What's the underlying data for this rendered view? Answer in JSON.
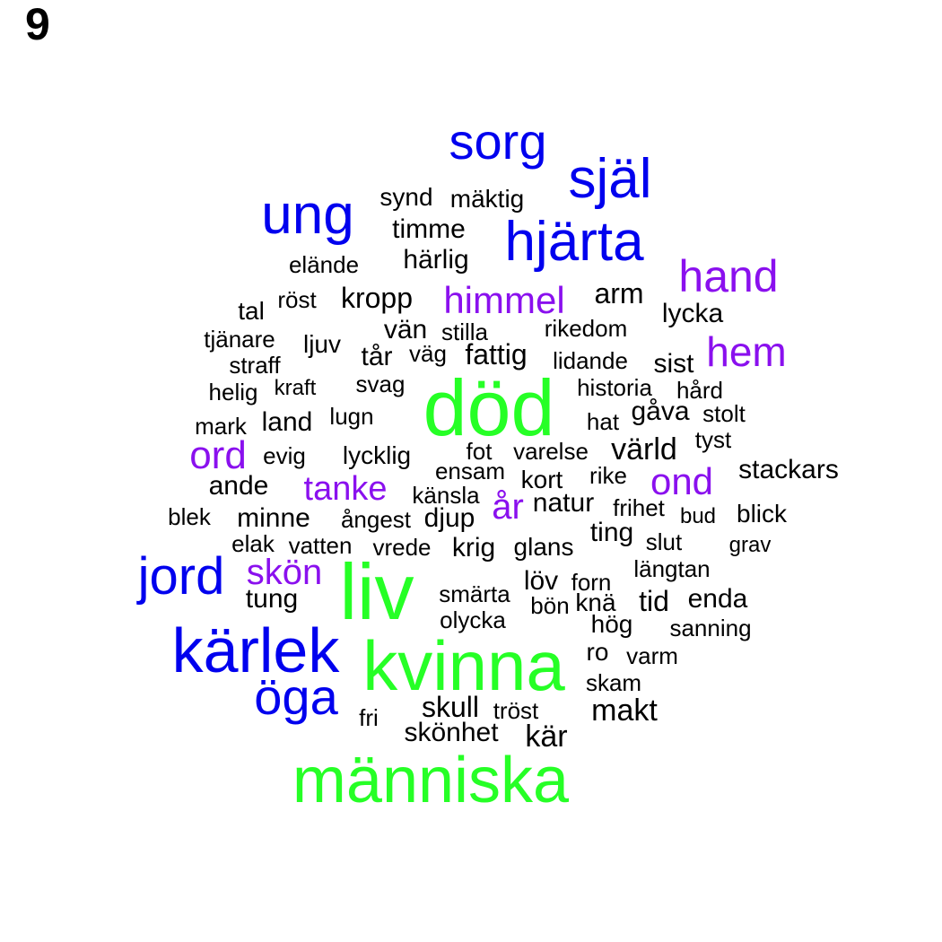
{
  "panel_label": "9",
  "colors": {
    "tier1": "#26ff26",
    "tier2": "#0000ee",
    "tier3": "#8a10ee",
    "tier4": "#000000"
  },
  "words": [
    {
      "text": "död",
      "tier": 1
    },
    {
      "text": "liv",
      "tier": 1
    },
    {
      "text": "kvinna",
      "tier": 1
    },
    {
      "text": "människa",
      "tier": 1
    },
    {
      "text": "sorg",
      "tier": 2
    },
    {
      "text": "själ",
      "tier": 2
    },
    {
      "text": "ung",
      "tier": 2
    },
    {
      "text": "hjärta",
      "tier": 2
    },
    {
      "text": "jord",
      "tier": 2
    },
    {
      "text": "kärlek",
      "tier": 2
    },
    {
      "text": "öga",
      "tier": 2
    },
    {
      "text": "hand",
      "tier": 3
    },
    {
      "text": "himmel",
      "tier": 3
    },
    {
      "text": "hem",
      "tier": 3
    },
    {
      "text": "ord",
      "tier": 3
    },
    {
      "text": "ond",
      "tier": 3
    },
    {
      "text": "tanke",
      "tier": 3
    },
    {
      "text": "år",
      "tier": 3
    },
    {
      "text": "skön",
      "tier": 3
    },
    {
      "text": "synd",
      "tier": 4
    },
    {
      "text": "mäktig",
      "tier": 4
    },
    {
      "text": "timme",
      "tier": 4
    },
    {
      "text": "härlig",
      "tier": 4
    },
    {
      "text": "elände",
      "tier": 4
    },
    {
      "text": "tal",
      "tier": 4
    },
    {
      "text": "röst",
      "tier": 4
    },
    {
      "text": "kropp",
      "tier": 4
    },
    {
      "text": "arm",
      "tier": 4
    },
    {
      "text": "lycka",
      "tier": 4
    },
    {
      "text": "tjänare",
      "tier": 4
    },
    {
      "text": "vän",
      "tier": 4
    },
    {
      "text": "stilla",
      "tier": 4
    },
    {
      "text": "rikedom",
      "tier": 4
    },
    {
      "text": "ljuv",
      "tier": 4
    },
    {
      "text": "straff",
      "tier": 4
    },
    {
      "text": "tår",
      "tier": 4
    },
    {
      "text": "väg",
      "tier": 4
    },
    {
      "text": "fattig",
      "tier": 4
    },
    {
      "text": "lidande",
      "tier": 4
    },
    {
      "text": "sist",
      "tier": 4
    },
    {
      "text": "helig",
      "tier": 4
    },
    {
      "text": "kraft",
      "tier": 4
    },
    {
      "text": "svag",
      "tier": 4
    },
    {
      "text": "historia",
      "tier": 4
    },
    {
      "text": "hård",
      "tier": 4
    },
    {
      "text": "mark",
      "tier": 4
    },
    {
      "text": "land",
      "tier": 4
    },
    {
      "text": "lugn",
      "tier": 4
    },
    {
      "text": "hat",
      "tier": 4
    },
    {
      "text": "gåva",
      "tier": 4
    },
    {
      "text": "stolt",
      "tier": 4
    },
    {
      "text": "tyst",
      "tier": 4
    },
    {
      "text": "evig",
      "tier": 4
    },
    {
      "text": "lycklig",
      "tier": 4
    },
    {
      "text": "fot",
      "tier": 4
    },
    {
      "text": "varelse",
      "tier": 4
    },
    {
      "text": "värld",
      "tier": 4
    },
    {
      "text": "ensam",
      "tier": 4
    },
    {
      "text": "kort",
      "tier": 4
    },
    {
      "text": "rike",
      "tier": 4
    },
    {
      "text": "stackars",
      "tier": 4
    },
    {
      "text": "ande",
      "tier": 4
    },
    {
      "text": "känsla",
      "tier": 4
    },
    {
      "text": "natur",
      "tier": 4
    },
    {
      "text": "frihet",
      "tier": 4
    },
    {
      "text": "blek",
      "tier": 4
    },
    {
      "text": "minne",
      "tier": 4
    },
    {
      "text": "ångest",
      "tier": 4
    },
    {
      "text": "djup",
      "tier": 4
    },
    {
      "text": "bud",
      "tier": 4
    },
    {
      "text": "blick",
      "tier": 4
    },
    {
      "text": "ting",
      "tier": 4
    },
    {
      "text": "elak",
      "tier": 4
    },
    {
      "text": "vatten",
      "tier": 4
    },
    {
      "text": "vrede",
      "tier": 4
    },
    {
      "text": "krig",
      "tier": 4
    },
    {
      "text": "glans",
      "tier": 4
    },
    {
      "text": "slut",
      "tier": 4
    },
    {
      "text": "grav",
      "tier": 4
    },
    {
      "text": "längtan",
      "tier": 4
    },
    {
      "text": "löv",
      "tier": 4
    },
    {
      "text": "forn",
      "tier": 4
    },
    {
      "text": "tung",
      "tier": 4
    },
    {
      "text": "smärta",
      "tier": 4
    },
    {
      "text": "bön",
      "tier": 4
    },
    {
      "text": "knä",
      "tier": 4
    },
    {
      "text": "tid",
      "tier": 4
    },
    {
      "text": "enda",
      "tier": 4
    },
    {
      "text": "olycka",
      "tier": 4
    },
    {
      "text": "hög",
      "tier": 4
    },
    {
      "text": "sanning",
      "tier": 4
    },
    {
      "text": "ro",
      "tier": 4
    },
    {
      "text": "varm",
      "tier": 4
    },
    {
      "text": "skam",
      "tier": 4
    },
    {
      "text": "skull",
      "tier": 4
    },
    {
      "text": "tröst",
      "tier": 4
    },
    {
      "text": "makt",
      "tier": 4
    },
    {
      "text": "fri",
      "tier": 4
    },
    {
      "text": "skönhet",
      "tier": 4
    },
    {
      "text": "kär",
      "tier": 4
    }
  ]
}
